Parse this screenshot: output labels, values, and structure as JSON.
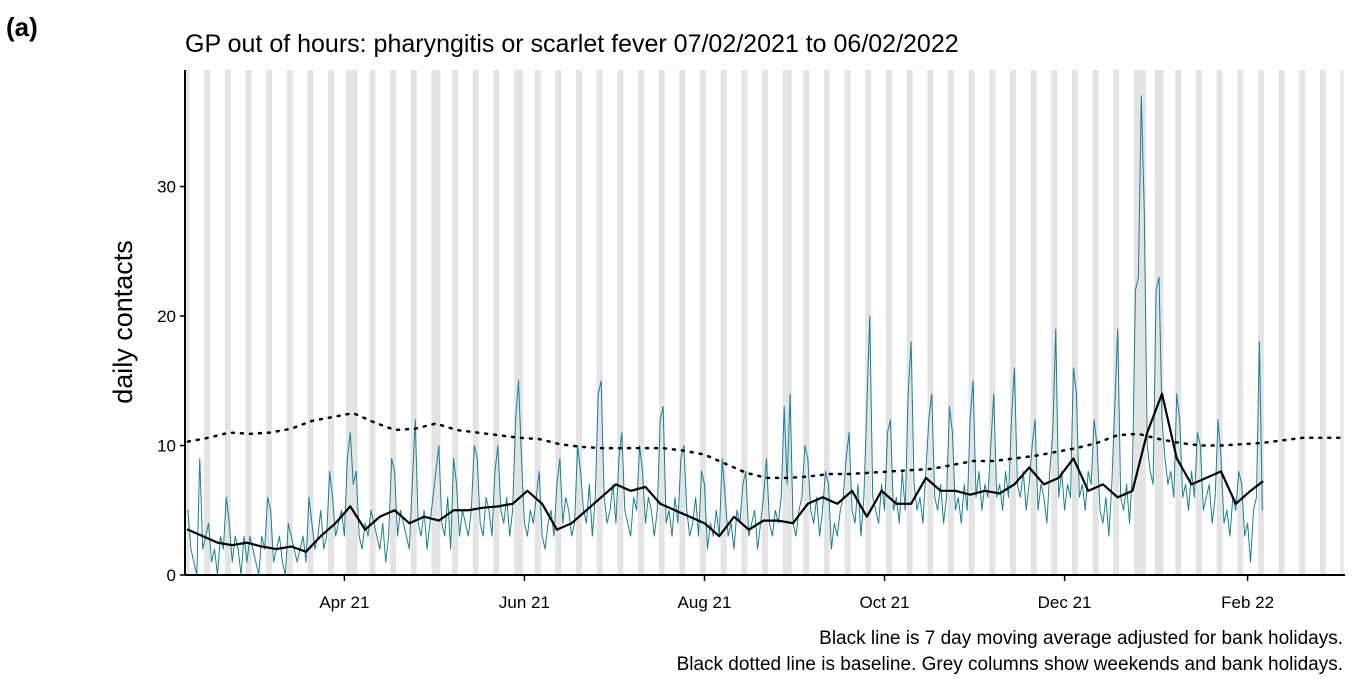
{
  "panel_label": "(a)",
  "chart_data": {
    "type": "line",
    "title": "GP out of hours: pharyngitis or scarlet fever 07/02/2021 to 06/02/2022",
    "ylabel": "daily contacts",
    "notes": [
      "Black line is 7 day moving average adjusted for bank holidays.",
      "Black dotted line is baseline. Grey columns show weekends and bank holidays."
    ],
    "xlim": [
      -1,
      392
    ],
    "xticks": [
      {
        "value": 53,
        "label": "Apr 21"
      },
      {
        "value": 114,
        "label": "Jun 21"
      },
      {
        "value": 175,
        "label": "Aug 21"
      },
      {
        "value": 236,
        "label": "Oct 21"
      },
      {
        "value": 297,
        "label": "Dec 21"
      },
      {
        "value": 359,
        "label": "Feb 22"
      }
    ],
    "ylim": [
      0,
      39
    ],
    "yticks": [
      0,
      10,
      20,
      30
    ],
    "shaded_color": "#e3e3e3",
    "shaded_days": [
      0,
      6,
      7,
      13,
      14,
      20,
      21,
      27,
      28,
      34,
      35,
      41,
      42,
      48,
      49,
      54,
      55,
      56,
      57,
      62,
      63,
      69,
      70,
      76,
      77,
      83,
      84,
      85,
      90,
      91,
      97,
      98,
      104,
      105,
      111,
      112,
      113,
      118,
      119,
      125,
      126,
      132,
      133,
      139,
      140,
      146,
      147,
      153,
      154,
      160,
      161,
      167,
      168,
      174,
      175,
      181,
      182,
      188,
      189,
      195,
      196,
      202,
      203,
      204,
      209,
      210,
      216,
      217,
      223,
      224,
      230,
      231,
      237,
      238,
      244,
      245,
      251,
      252,
      258,
      259,
      265,
      266,
      272,
      273,
      279,
      280,
      286,
      287,
      293,
      294,
      300,
      301,
      307,
      308,
      314,
      315,
      321,
      322,
      323,
      324,
      328,
      329,
      330,
      335,
      336,
      342,
      343,
      349,
      350,
      356,
      357,
      363,
      364,
      370,
      371,
      377,
      378,
      384,
      385,
      391
    ],
    "series": [
      {
        "color": "#1a7f96",
        "width": 1,
        "dash": "none",
        "x": [
          0,
          1,
          2,
          3,
          4,
          5,
          6,
          7,
          8,
          9,
          10,
          11,
          12,
          13,
          14,
          15,
          16,
          17,
          18,
          19,
          20,
          21,
          22,
          23,
          24,
          25,
          26,
          27,
          28,
          29,
          30,
          31,
          32,
          33,
          34,
          35,
          36,
          37,
          38,
          39,
          40,
          41,
          42,
          43,
          44,
          45,
          46,
          47,
          48,
          49,
          50,
          51,
          52,
          53,
          54,
          55,
          56,
          57,
          58,
          59,
          60,
          61,
          62,
          63,
          64,
          65,
          66,
          67,
          68,
          69,
          70,
          71,
          72,
          73,
          74,
          75,
          76,
          77,
          78,
          79,
          80,
          81,
          82,
          83,
          84,
          85,
          86,
          87,
          88,
          89,
          90,
          91,
          92,
          93,
          94,
          95,
          96,
          97,
          98,
          99,
          100,
          101,
          102,
          103,
          104,
          105,
          106,
          107,
          108,
          109,
          110,
          111,
          112,
          113,
          114,
          115,
          116,
          117,
          118,
          119,
          120,
          121,
          122,
          123,
          124,
          125,
          126,
          127,
          128,
          129,
          130,
          131,
          132,
          133,
          134,
          135,
          136,
          137,
          138,
          139,
          140,
          141,
          142,
          143,
          144,
          145,
          146,
          147,
          148,
          149,
          150,
          151,
          152,
          153,
          154,
          155,
          156,
          157,
          158,
          159,
          160,
          161,
          162,
          163,
          164,
          165,
          166,
          167,
          168,
          169,
          170,
          171,
          172,
          173,
          174,
          175,
          176,
          177,
          178,
          179,
          180,
          181,
          182,
          183,
          184,
          185,
          186,
          187,
          188,
          189,
          190,
          191,
          192,
          193,
          194,
          195,
          196,
          197,
          198,
          199,
          200,
          201,
          202,
          203,
          204,
          205,
          206,
          207,
          208,
          209,
          210,
          211,
          212,
          213,
          214,
          215,
          216,
          217,
          218,
          219,
          220,
          221,
          222,
          223,
          224,
          225,
          226,
          227,
          228,
          229,
          230,
          231,
          232,
          233,
          234,
          235,
          236,
          237,
          238,
          239,
          240,
          241,
          242,
          243,
          244,
          245,
          246,
          247,
          248,
          249,
          250,
          251,
          252,
          253,
          254,
          255,
          256,
          257,
          258,
          259,
          260,
          261,
          262,
          263,
          264,
          265,
          266,
          267,
          268,
          269,
          270,
          271,
          272,
          273,
          274,
          275,
          276,
          277,
          278,
          279,
          280,
          281,
          282,
          283,
          284,
          285,
          286,
          287,
          288,
          289,
          290,
          291,
          292,
          293,
          294,
          295,
          296,
          297,
          298,
          299,
          300,
          301,
          302,
          303,
          304,
          305,
          306,
          307,
          308,
          309,
          310,
          311,
          312,
          313,
          314,
          315,
          316,
          317,
          318,
          319,
          320,
          321,
          322,
          323,
          324,
          325,
          326,
          327,
          328,
          329,
          330,
          331,
          332,
          333,
          334,
          335,
          336,
          337,
          338,
          339,
          340,
          341,
          342,
          343,
          344,
          345,
          346,
          347,
          348,
          349,
          350,
          351,
          352,
          353,
          354,
          355,
          356,
          357,
          358,
          359,
          360,
          361,
          362,
          363,
          364
        ],
        "values": [
          5,
          2,
          1,
          0,
          9,
          2,
          3,
          4,
          1,
          2,
          0,
          3,
          2,
          6,
          4,
          1,
          3,
          2,
          0,
          3,
          1,
          3,
          2,
          1,
          0,
          3,
          2,
          6,
          5,
          1,
          2,
          3,
          1,
          0,
          4,
          3,
          2,
          1,
          2,
          3,
          1,
          6,
          4,
          2,
          3,
          5,
          2,
          3,
          8,
          6,
          3,
          4,
          5,
          3,
          9,
          11,
          7,
          8,
          3,
          2,
          4,
          3,
          5,
          4,
          3,
          2,
          4,
          1,
          3,
          9,
          8,
          3,
          5,
          4,
          3,
          2,
          7,
          12,
          4,
          3,
          5,
          2,
          4,
          6,
          8,
          10,
          4,
          3,
          6,
          2,
          9,
          7,
          3,
          5,
          4,
          3,
          5,
          10,
          9,
          4,
          3,
          6,
          5,
          3,
          8,
          10,
          5,
          4,
          6,
          3,
          5,
          12,
          15,
          9,
          4,
          3,
          5,
          4,
          6,
          8,
          3,
          2,
          4,
          5,
          3,
          7,
          9,
          4,
          6,
          5,
          3,
          4,
          10,
          8,
          5,
          4,
          7,
          3,
          6,
          14,
          15,
          6,
          4,
          5,
          7,
          4,
          9,
          11,
          5,
          4,
          3,
          6,
          5,
          10,
          8,
          4,
          6,
          5,
          3,
          5,
          12,
          13,
          4,
          5,
          3,
          6,
          4,
          9,
          10,
          5,
          3,
          4,
          6,
          3,
          8,
          7,
          2,
          4,
          3,
          5,
          3,
          9,
          6,
          3,
          4,
          2,
          5,
          4,
          7,
          8,
          3,
          4,
          5,
          2,
          4,
          6,
          9,
          4,
          3,
          5,
          4,
          6,
          13,
          7,
          14,
          4,
          3,
          5,
          6,
          10,
          9,
          5,
          4,
          6,
          3,
          5,
          8,
          7,
          2,
          4,
          3,
          5,
          6,
          9,
          11,
          5,
          4,
          7,
          3,
          6,
          13,
          20,
          6,
          5,
          4,
          7,
          5,
          11,
          12,
          5,
          6,
          4,
          8,
          5,
          14,
          18,
          7,
          5,
          6,
          4,
          8,
          12,
          14,
          6,
          5,
          7,
          4,
          6,
          13,
          11,
          5,
          6,
          4,
          7,
          5,
          12,
          15,
          6,
          8,
          5,
          7,
          6,
          10,
          14,
          6,
          7,
          5,
          8,
          6,
          12,
          16,
          7,
          6,
          8,
          5,
          7,
          10,
          12,
          5,
          7,
          6,
          4,
          8,
          11,
          19,
          6,
          8,
          5,
          7,
          6,
          16,
          14,
          6,
          7,
          5,
          8,
          7,
          12,
          10,
          5,
          4,
          6,
          3,
          7,
          13,
          19,
          6,
          5,
          7,
          4,
          8,
          22,
          23,
          37,
          28,
          10,
          8,
          7,
          22,
          23,
          12,
          9,
          7,
          8,
          6,
          14,
          12,
          6,
          7,
          5,
          8,
          6,
          11,
          10,
          5,
          6,
          7,
          4,
          6,
          12,
          9,
          4,
          5,
          3,
          6,
          5,
          8,
          7,
          3,
          4,
          1,
          5,
          6,
          18,
          5
        ]
      },
      {
        "color": "#000000",
        "width": 2.2,
        "dash": "none",
        "x": [
          0,
          5,
          10,
          15,
          20,
          25,
          30,
          35,
          40,
          45,
          50,
          55,
          60,
          65,
          70,
          75,
          80,
          85,
          90,
          95,
          100,
          105,
          110,
          115,
          120,
          125,
          130,
          135,
          140,
          145,
          150,
          155,
          160,
          165,
          170,
          175,
          180,
          185,
          190,
          195,
          200,
          205,
          210,
          215,
          220,
          225,
          230,
          235,
          240,
          245,
          250,
          255,
          260,
          265,
          270,
          275,
          280,
          285,
          290,
          295,
          300,
          305,
          310,
          315,
          320,
          325,
          330,
          335,
          340,
          345,
          350,
          355,
          360,
          364
        ],
        "values": [
          3.5,
          3.0,
          2.5,
          2.3,
          2.5,
          2.2,
          2.0,
          2.2,
          1.8,
          3.0,
          4.0,
          5.3,
          3.5,
          4.5,
          5.0,
          4.0,
          4.5,
          4.2,
          5.0,
          5.0,
          5.2,
          5.3,
          5.5,
          6.5,
          5.5,
          3.5,
          4.0,
          5.0,
          6.0,
          7.0,
          6.5,
          6.8,
          5.5,
          5.0,
          4.5,
          4.0,
          3.0,
          4.5,
          3.5,
          4.2,
          4.2,
          4.0,
          5.5,
          6.0,
          5.5,
          6.5,
          4.5,
          6.5,
          5.5,
          5.5,
          7.5,
          6.5,
          6.5,
          6.2,
          6.5,
          6.3,
          7.0,
          8.3,
          7.0,
          7.5,
          9.0,
          6.5,
          7.0,
          6.0,
          6.5,
          11,
          14,
          9,
          7.0,
          7.5,
          8.0,
          5.5,
          6.5,
          7.2
        ]
      },
      {
        "color": "#000000",
        "width": 2.5,
        "dash": "2,7",
        "x": [
          0,
          7,
          14,
          21,
          28,
          35,
          42,
          49,
          56,
          63,
          70,
          77,
          84,
          91,
          98,
          105,
          112,
          119,
          126,
          133,
          140,
          147,
          154,
          161,
          168,
          175,
          182,
          189,
          196,
          203,
          210,
          217,
          224,
          231,
          238,
          245,
          252,
          259,
          266,
          273,
          280,
          287,
          294,
          301,
          308,
          315,
          322,
          329,
          336,
          343,
          350,
          357,
          364,
          371,
          378,
          385,
          392
        ],
        "values": [
          10.3,
          10.6,
          11.0,
          10.9,
          11.0,
          11.3,
          11.9,
          12.2,
          12.5,
          11.8,
          11.2,
          11.3,
          11.7,
          11.2,
          11.0,
          10.8,
          10.6,
          10.5,
          10.1,
          9.9,
          9.8,
          9.8,
          9.8,
          9.8,
          9.6,
          9.3,
          8.6,
          7.9,
          7.5,
          7.5,
          7.6,
          7.8,
          7.8,
          7.9,
          8.0,
          8.1,
          8.2,
          8.5,
          8.8,
          8.8,
          9.0,
          9.2,
          9.5,
          9.8,
          10.2,
          10.8,
          10.9,
          10.5,
          10.2,
          10.0,
          10.0,
          10.1,
          10.2,
          10.4,
          10.6,
          10.6,
          10.6
        ]
      }
    ]
  }
}
